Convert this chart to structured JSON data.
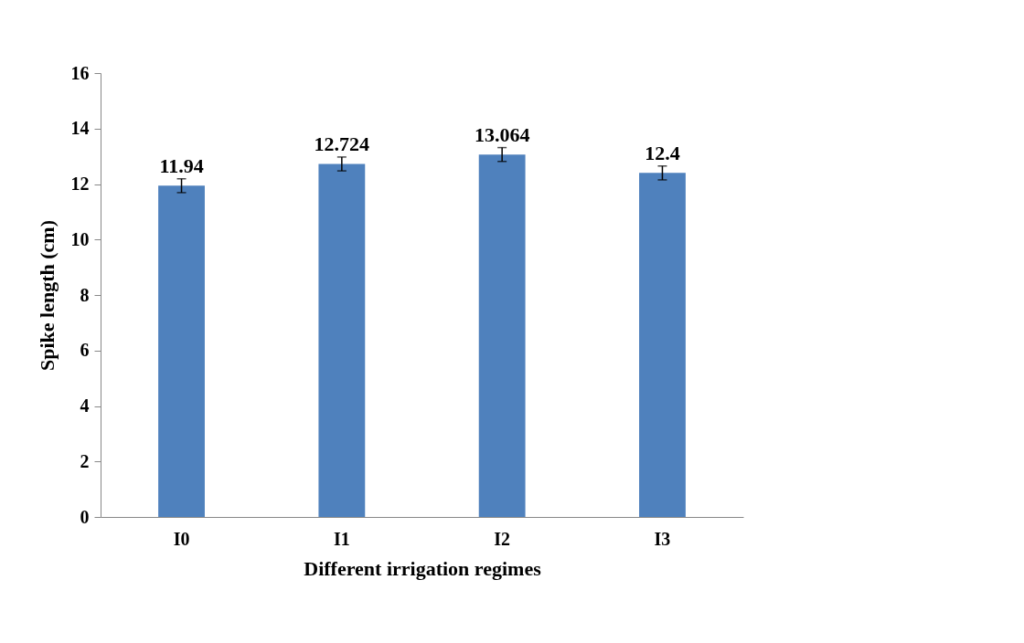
{
  "chart_data": {
    "type": "bar",
    "xlabel": "Different irrigation regimes",
    "ylabel": "Spike length (cm)",
    "categories": [
      "I0",
      "I1",
      "I2",
      "I3"
    ],
    "values": [
      11.94,
      12.724,
      13.064,
      12.4
    ],
    "errors": [
      0.25,
      0.25,
      0.25,
      0.25
    ],
    "color": "#4f81bd",
    "ylim": [
      0,
      16
    ],
    "yticks": [
      0,
      2,
      4,
      6,
      8,
      10,
      12,
      14,
      16
    ],
    "data_labels": true,
    "grid": false
  }
}
